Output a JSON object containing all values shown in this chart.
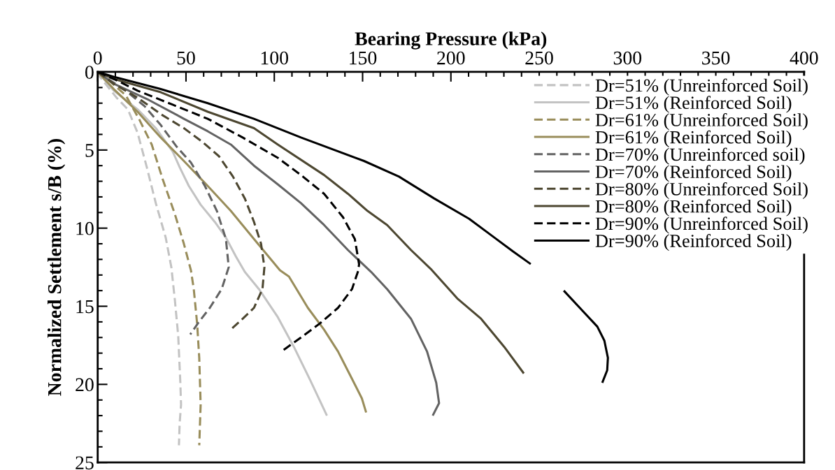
{
  "chart_data": {
    "type": "line",
    "xlabel": "Bearing Pressure (kPa)",
    "ylabel": "Normalized Settlement s/B (%)",
    "xlim": [
      0,
      400
    ],
    "xticks": [
      0,
      50,
      100,
      150,
      200,
      250,
      300,
      350,
      400
    ],
    "ylim": [
      25,
      0
    ],
    "yticks": [
      0,
      5,
      10,
      15,
      20,
      25
    ],
    "grid": false,
    "legend": "top right",
    "marker": "none",
    "series": [
      {
        "name": "Dr=51% (Unreinforced Soil)",
        "color": "#c3c3c3",
        "line_style": "dashed",
        "x": [
          0,
          1.2,
          10.7,
          17.1,
          22.6,
          27.8,
          32.9,
          38.5,
          41.7,
          43.7,
          45.6,
          46.8,
          47.2,
          46.4,
          46.0
        ],
        "values": [
          0,
          0.31,
          1.65,
          2.4,
          3.9,
          6.1,
          8.4,
          10.6,
          12.5,
          14.6,
          16.9,
          19.9,
          21.3,
          22.5,
          23.9
        ]
      },
      {
        "name": "Dr=51% (Reinforced Soil)",
        "color": "#c3c3c3",
        "line_style": "solid",
        "x": [
          0,
          9.1,
          22.6,
          32.9,
          42.5,
          46.4,
          51.6,
          58.3,
          66.3,
          72.6,
          78.2,
          83.3,
          91.3,
          102.0,
          111.1,
          120.2,
          129.8
        ],
        "values": [
          0,
          1.2,
          2.4,
          3.6,
          5.1,
          6.1,
          7.3,
          8.5,
          9.6,
          10.6,
          11.8,
          12.8,
          13.9,
          15.7,
          17.6,
          19.7,
          22.0
        ]
      },
      {
        "name": "Dr=61% (Unreinforced Soil)",
        "color": "#998d5b",
        "line_style": "dashed",
        "x": [
          0,
          4.0,
          15.9,
          23.8,
          30.6,
          36.9,
          43.7,
          48.8,
          52.8,
          54.4,
          56.3,
          57.5,
          58.3,
          57.5
        ],
        "values": [
          0,
          0.31,
          1.5,
          3.1,
          4.65,
          6.9,
          9.1,
          11.0,
          12.7,
          13.9,
          16.1,
          18.3,
          21.3,
          23.9
        ]
      },
      {
        "name": "Dr=61% (Reinforced Soil)",
        "color": "#998d5b",
        "line_style": "solid",
        "x": [
          0,
          9.1,
          22.6,
          35.7,
          48.8,
          62.3,
          75.4,
          88.5,
          103.2,
          108.3,
          119.0,
          128.2,
          136.1,
          142.9,
          149.6,
          152.0
        ],
        "values": [
          0,
          1.1,
          2.55,
          4.2,
          5.7,
          7.3,
          8.9,
          10.7,
          12.7,
          13.1,
          15.1,
          16.5,
          17.9,
          19.4,
          20.9,
          21.8
        ]
      },
      {
        "name": "Dr=70% (Unreinforced soil)",
        "color": "#636363",
        "line_style": "dashed",
        "x": [
          0,
          4.0,
          15.9,
          26.6,
          35.7,
          44.8,
          52.8,
          60.7,
          67.5,
          72.6,
          74.2,
          70.2,
          63.5,
          56.7,
          52.4
        ],
        "values": [
          0,
          0.31,
          1.2,
          2.2,
          3.4,
          4.8,
          5.8,
          7.3,
          8.9,
          10.7,
          12.5,
          13.9,
          15.1,
          16.1,
          16.8
        ]
      },
      {
        "name": "Dr=70% (Reinforced Soil)",
        "color": "#636363",
        "line_style": "solid",
        "x": [
          0,
          9.1,
          29.0,
          48.8,
          62.3,
          75.4,
          88.5,
          102.0,
          115.1,
          128.2,
          141.7,
          154.8,
          163.9,
          177.4,
          186.5,
          191.7,
          193.3,
          189.7
        ],
        "values": [
          0,
          0.76,
          1.8,
          3.0,
          3.8,
          4.65,
          6.0,
          7.2,
          8.4,
          9.8,
          11.4,
          12.8,
          13.9,
          15.8,
          17.9,
          19.9,
          21.2,
          22.0
        ]
      },
      {
        "name": "Dr=80% (Unreinforced Soil)",
        "color": "#4d4731",
        "line_style": "dashed",
        "x": [
          0,
          9.1,
          22.6,
          35.7,
          48.8,
          59.5,
          68.7,
          76.6,
          83.3,
          88.5,
          92.5,
          94.4,
          93.3,
          88.5,
          82.1,
          76.2
        ],
        "values": [
          0,
          0.76,
          1.65,
          2.7,
          3.6,
          4.5,
          5.4,
          6.7,
          8.1,
          9.6,
          11.0,
          12.5,
          13.9,
          15.1,
          15.8,
          16.4
        ]
      },
      {
        "name": "Dr=80% (Reinforced Soil)",
        "color": "#4d4731",
        "line_style": "solid",
        "x": [
          0,
          9.1,
          35.7,
          62.3,
          88.5,
          102.0,
          128.2,
          141.7,
          152.8,
          163.9,
          177.4,
          188.5,
          203.6,
          217.1,
          230.2,
          241.3
        ],
        "values": [
          0,
          0.45,
          1.3,
          2.55,
          3.6,
          4.65,
          6.6,
          7.8,
          8.9,
          9.8,
          11.4,
          12.6,
          14.5,
          15.8,
          17.6,
          19.3
        ]
      },
      {
        "name": "Dr=90% (Unreinforced Soil)",
        "color": "#000000",
        "line_style": "dashed",
        "x": [
          0,
          9.1,
          22.6,
          42.5,
          62.3,
          82.1,
          102.0,
          115.1,
          128.2,
          138.9,
          145.6,
          148.0,
          147.6,
          144.0,
          136.1,
          125.8,
          115.1,
          105.2
        ],
        "values": [
          0,
          0.45,
          1.2,
          2.1,
          3.0,
          4.2,
          5.5,
          6.6,
          7.8,
          9.3,
          10.7,
          12.3,
          12.7,
          13.9,
          15.1,
          16.1,
          17.0,
          17.8
        ]
      },
      {
        "name": "Dr=90% (Reinforced Soil)",
        "color": "#000000",
        "line_style": "solid",
        "x": [
          0,
          9.1,
          35.7,
          62.3,
          88.5,
          115.1,
          150.8,
          170.6,
          190.5,
          210.3,
          223.4,
          235.3,
          245.2,
          null,
          263.9,
          273.8,
          282.9,
          286.9,
          288.9,
          288.5,
          285.7
        ],
        "values": [
          0,
          0.31,
          1.1,
          2.0,
          3.0,
          4.2,
          5.7,
          6.7,
          8.1,
          9.4,
          10.5,
          11.5,
          12.3,
          null,
          14.0,
          15.2,
          16.3,
          17.2,
          18.3,
          19.1,
          19.9
        ]
      }
    ]
  }
}
